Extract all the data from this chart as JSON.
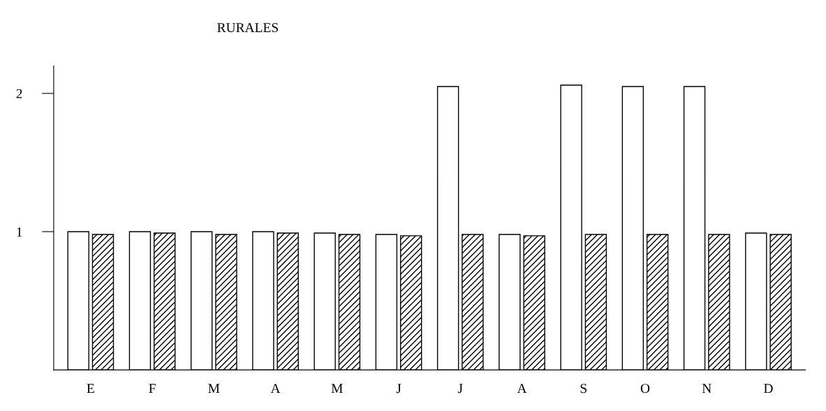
{
  "chart_data": {
    "type": "bar",
    "title": "RURALES",
    "categories": [
      "E",
      "F",
      "M",
      "A",
      "M",
      "J",
      "J",
      "A",
      "S",
      "O",
      "N",
      "D"
    ],
    "series": [
      {
        "color": "#ffffff",
        "values": [
          1.0,
          1.0,
          1.0,
          1.0,
          0.99,
          0.98,
          2.05,
          0.98,
          2.06,
          2.05,
          2.05,
          0.99
        ]
      },
      {
        "color": "#000000",
        "values": [
          0.98,
          0.99,
          0.98,
          0.99,
          0.98,
          0.97,
          0.98,
          0.97,
          0.98,
          0.98,
          0.98,
          0.98
        ]
      }
    ],
    "ylim": [
      0,
      2.2
    ],
    "yticks": [
      1,
      2
    ],
    "grid": false,
    "legend": false
  }
}
